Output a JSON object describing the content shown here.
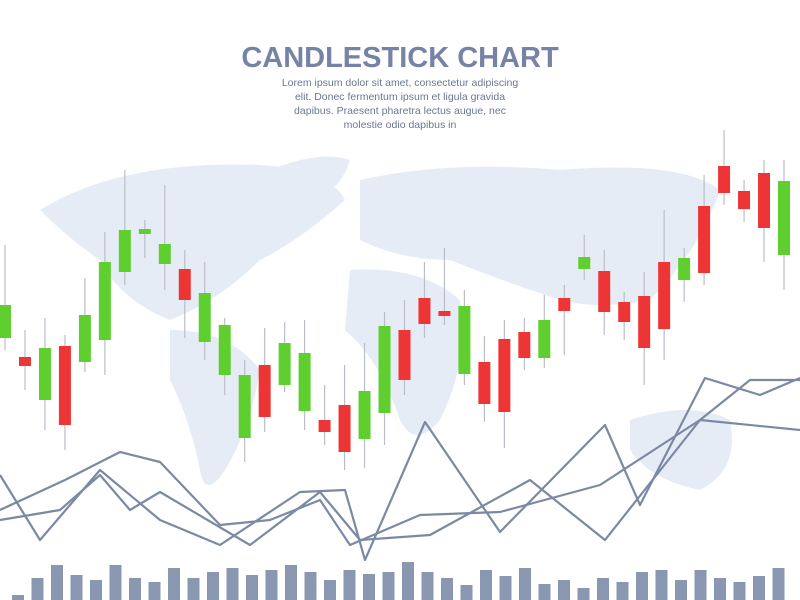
{
  "header": {
    "title": "CANDLESTICK CHART",
    "subtitle": [
      "Lorem ipsum dolor sit amet, consectetur adipiscing",
      "elit. Donec fermentum ipsum et ligula gravida",
      "dapibus. Praesent pharetra lectus augue, nec",
      "molestie odio dapibus in"
    ]
  },
  "chart_data": [
    {
      "type": "candlestick",
      "up_color": "#5fcf2f",
      "down_color": "#ee3535",
      "ylim": [
        0,
        500
      ],
      "open": [
        262,
        243,
        200,
        254,
        238,
        260,
        328,
        366,
        336,
        331,
        258,
        225,
        162,
        235,
        215,
        189,
        180,
        195,
        161,
        187,
        270,
        302,
        289,
        226,
        238,
        261,
        268,
        242,
        302,
        331,
        329,
        298,
        304,
        338,
        320,
        394,
        434,
        409,
        427,
        345
      ],
      "close": [
        295,
        234,
        252,
        175,
        285,
        338,
        370,
        371,
        356,
        300,
        307,
        275,
        225,
        183,
        257,
        247,
        168,
        148,
        209,
        274,
        220,
        276,
        284,
        294,
        196,
        188,
        242,
        280,
        289,
        343,
        288,
        278,
        252,
        271,
        342,
        327,
        407,
        391,
        372,
        419
      ],
      "high": [
        355,
        270,
        282,
        265,
        322,
        368,
        430,
        380,
        415,
        350,
        338,
        282,
        240,
        272,
        278,
        280,
        215,
        235,
        257,
        288,
        300,
        338,
        352,
        310,
        264,
        280,
        282,
        305,
        315,
        365,
        350,
        308,
        328,
        390,
        352,
        425,
        470,
        420,
        440,
        440
      ],
      "low": [
        250,
        210,
        170,
        150,
        228,
        225,
        315,
        342,
        310,
        262,
        240,
        205,
        138,
        168,
        208,
        170,
        155,
        130,
        132,
        155,
        205,
        262,
        275,
        215,
        178,
        152,
        230,
        232,
        245,
        320,
        265,
        260,
        215,
        240,
        298,
        315,
        395,
        378,
        338,
        310
      ]
    },
    {
      "type": "line",
      "color": "#7b89a3",
      "xlim": [
        0,
        800
      ],
      "ylim": [
        0,
        500
      ],
      "series": [
        {
          "x": [
            0,
            40,
            100,
            160,
            220,
            300,
            345,
            365,
            425,
            500,
            605,
            640,
            705,
            760,
            800
          ],
          "values": [
            125,
            60,
            130,
            80,
            55,
            108,
            110,
            40,
            178,
            68,
            175,
            95,
            222,
            205,
            222
          ]
        },
        {
          "x": [
            0,
            65,
            120,
            160,
            220,
            270,
            320,
            350,
            420,
            500,
            600,
            700,
            800
          ],
          "values": [
            90,
            120,
            148,
            138,
            75,
            80,
            100,
            55,
            85,
            88,
            115,
            180,
            170
          ]
        },
        {
          "x": [
            0,
            60,
            100,
            130,
            160,
            250,
            320,
            360,
            430,
            530,
            605,
            700,
            750,
            800
          ],
          "values": [
            80,
            90,
            125,
            90,
            108,
            55,
            108,
            60,
            65,
            120,
            60,
            180,
            220,
            220
          ]
        }
      ]
    },
    {
      "type": "bar",
      "color": "#8a97b0",
      "ylim": [
        0,
        100
      ],
      "values": [
        5,
        22,
        35,
        25,
        20,
        35,
        22,
        18,
        32,
        22,
        28,
        32,
        25,
        30,
        35,
        28,
        20,
        30,
        26,
        28,
        38,
        28,
        22,
        15,
        30,
        24,
        32,
        16,
        20,
        12,
        22,
        18,
        28,
        30,
        20,
        30,
        22,
        18,
        24,
        32
      ]
    }
  ]
}
